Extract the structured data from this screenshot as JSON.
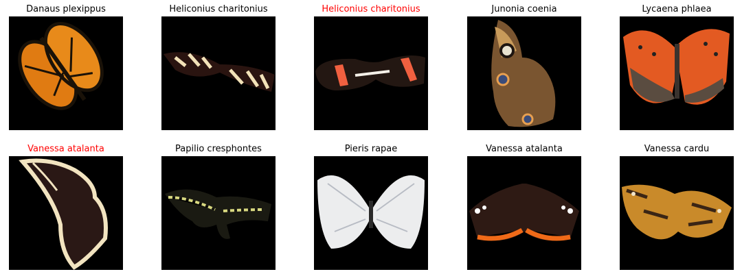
{
  "grid": {
    "cells": [
      {
        "label": "Danaus plexippus",
        "label_color": "#000000",
        "subject": "monarch-butterfly-image"
      },
      {
        "label": "Heliconius charitonius",
        "label_color": "#000000",
        "subject": "zebra-longwing-butterfly-image"
      },
      {
        "label": "Heliconius charitonius",
        "label_color": "#ff0000",
        "subject": "postman-butterfly-image"
      },
      {
        "label": "Junonia coenia",
        "label_color": "#000000",
        "subject": "buckeye-butterfly-image"
      },
      {
        "label": "Lycaena phlaea",
        "label_color": "#000000",
        "subject": "copper-butterfly-image"
      },
      {
        "label": "Vanessa atalanta",
        "label_color": "#ff0000",
        "subject": "mourning-cloak-butterfly-image"
      },
      {
        "label": "Papilio cresphontes",
        "label_color": "#000000",
        "subject": "swallowtail-butterfly-image"
      },
      {
        "label": "Pieris rapae",
        "label_color": "#000000",
        "subject": "white-butterfly-image"
      },
      {
        "label": "Vanessa atalanta",
        "label_color": "#000000",
        "subject": "red-admiral-butterfly-image"
      },
      {
        "label": "Vanessa cardu",
        "label_color": "#000000",
        "subject": "painted-lady-butterfly-image"
      }
    ]
  }
}
